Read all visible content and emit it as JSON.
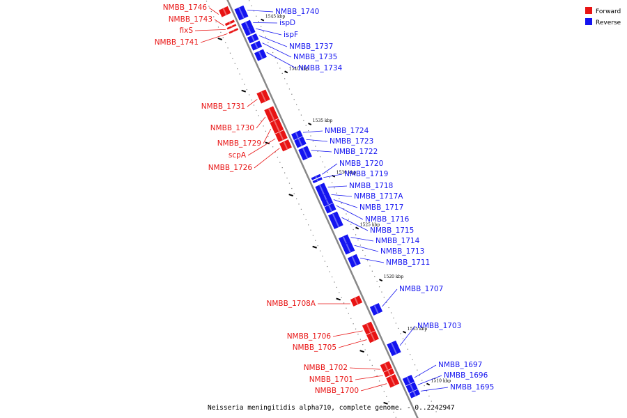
{
  "colors": {
    "forward": "#e81414",
    "reverse": "#1414f0",
    "axis": "#888888"
  },
  "legend": {
    "forward": "Forward",
    "reverse": "Reverse"
  },
  "footer": "Neisseria meningitidis alpha710, complete genome. - 0..2242947",
  "ticks": [
    {
      "kbp": 1545,
      "label": "1545 kbp"
    },
    {
      "kbp": 1540,
      "label": "1540 kbp"
    },
    {
      "kbp": 1535,
      "label": "1535 kbp"
    },
    {
      "kbp": 1530,
      "label": "1530 kbp"
    },
    {
      "kbp": 1525,
      "label": "1525 kbp"
    },
    {
      "kbp": 1520,
      "label": "1520 kbp"
    },
    {
      "kbp": 1515,
      "label": "1515 kbp"
    },
    {
      "kbp": 1510,
      "label": "1510 kbp"
    }
  ],
  "forward_genes": [
    {
      "name": "NMBB_1746",
      "start": 1547.3,
      "end": 1546.7
    },
    {
      "name": "NMBB_1743",
      "start": 1546.0,
      "end": 1545.85
    },
    {
      "name": "fixS",
      "start": 1545.6,
      "end": 1545.5
    },
    {
      "name": "NMBB_1741",
      "start": 1545.2,
      "end": 1545.1
    },
    {
      "name": "NMBB_1731",
      "start": 1539.3,
      "end": 1538.4
    },
    {
      "name": "NMBB_1730",
      "start": 1537.7,
      "end": 1536.6
    },
    {
      "name": "NMBB_1729",
      "start": 1536.5,
      "end": 1535.5
    },
    {
      "name": "scpA",
      "start": 1535.4,
      "end": 1534.7
    },
    {
      "name": "NMBB_1726",
      "start": 1534.5,
      "end": 1533.8
    },
    {
      "name": "NMBB_1708A",
      "start": 1519.5,
      "end": 1518.9
    },
    {
      "name": "NMBB_1706",
      "start": 1517.0,
      "end": 1516.2
    },
    {
      "name": "NMBB_1705",
      "start": 1516.1,
      "end": 1515.4
    },
    {
      "name": "NMBB_1702",
      "start": 1513.2,
      "end": 1512.6
    },
    {
      "name": "NMBB_1701",
      "start": 1512.5,
      "end": 1512.1
    },
    {
      "name": "NMBB_1700",
      "start": 1511.95,
      "end": 1511.1
    }
  ],
  "reverse_genes": [
    {
      "name": "NMBB_1740",
      "start": 1546.8,
      "end": 1545.8
    },
    {
      "name": "ispD",
      "start": 1545.4,
      "end": 1544.8
    },
    {
      "name": "ispF",
      "start": 1544.75,
      "end": 1544.3
    },
    {
      "name": "NMBB_1737",
      "start": 1544.1,
      "end": 1543.6
    },
    {
      "name": "NMBB_1735",
      "start": 1543.4,
      "end": 1542.9
    },
    {
      "name": "NMBB_1734",
      "start": 1542.6,
      "end": 1541.9
    },
    {
      "name": "NMBB_1724",
      "start": 1534.8,
      "end": 1534.3
    },
    {
      "name": "NMBB_1723",
      "start": 1534.2,
      "end": 1533.55
    },
    {
      "name": "NMBB_1722",
      "start": 1533.3,
      "end": 1532.35
    },
    {
      "name": "NMBB_1720",
      "start": 1530.6,
      "end": 1530.45
    },
    {
      "name": "NMBB_1719",
      "start": 1530.3,
      "end": 1530.15
    },
    {
      "name": "NMBB_1718",
      "start": 1529.75,
      "end": 1528.85
    },
    {
      "name": "NMBB_1717A",
      "start": 1528.8,
      "end": 1528.35
    },
    {
      "name": "NMBB_1717",
      "start": 1528.3,
      "end": 1527.9
    },
    {
      "name": "NMBB_1716",
      "start": 1527.8,
      "end": 1527.25
    },
    {
      "name": "NMBB_1715",
      "start": 1527.0,
      "end": 1525.75
    },
    {
      "name": "NMBB_1714",
      "start": 1524.8,
      "end": 1524.15
    },
    {
      "name": "NMBB_1713",
      "start": 1524.1,
      "end": 1523.3
    },
    {
      "name": "NMBB_1711",
      "start": 1522.9,
      "end": 1522.05
    },
    {
      "name": "NMBB_1707",
      "start": 1518.2,
      "end": 1517.45
    },
    {
      "name": "NMBB_1703",
      "start": 1514.6,
      "end": 1513.55
    },
    {
      "name": "NMBB_1697",
      "start": 1511.3,
      "end": 1510.7
    },
    {
      "name": "NMBB_1696",
      "start": 1510.6,
      "end": 1510.0
    },
    {
      "name": "NMBB_1695",
      "start": 1509.9,
      "end": 1509.5
    }
  ]
}
